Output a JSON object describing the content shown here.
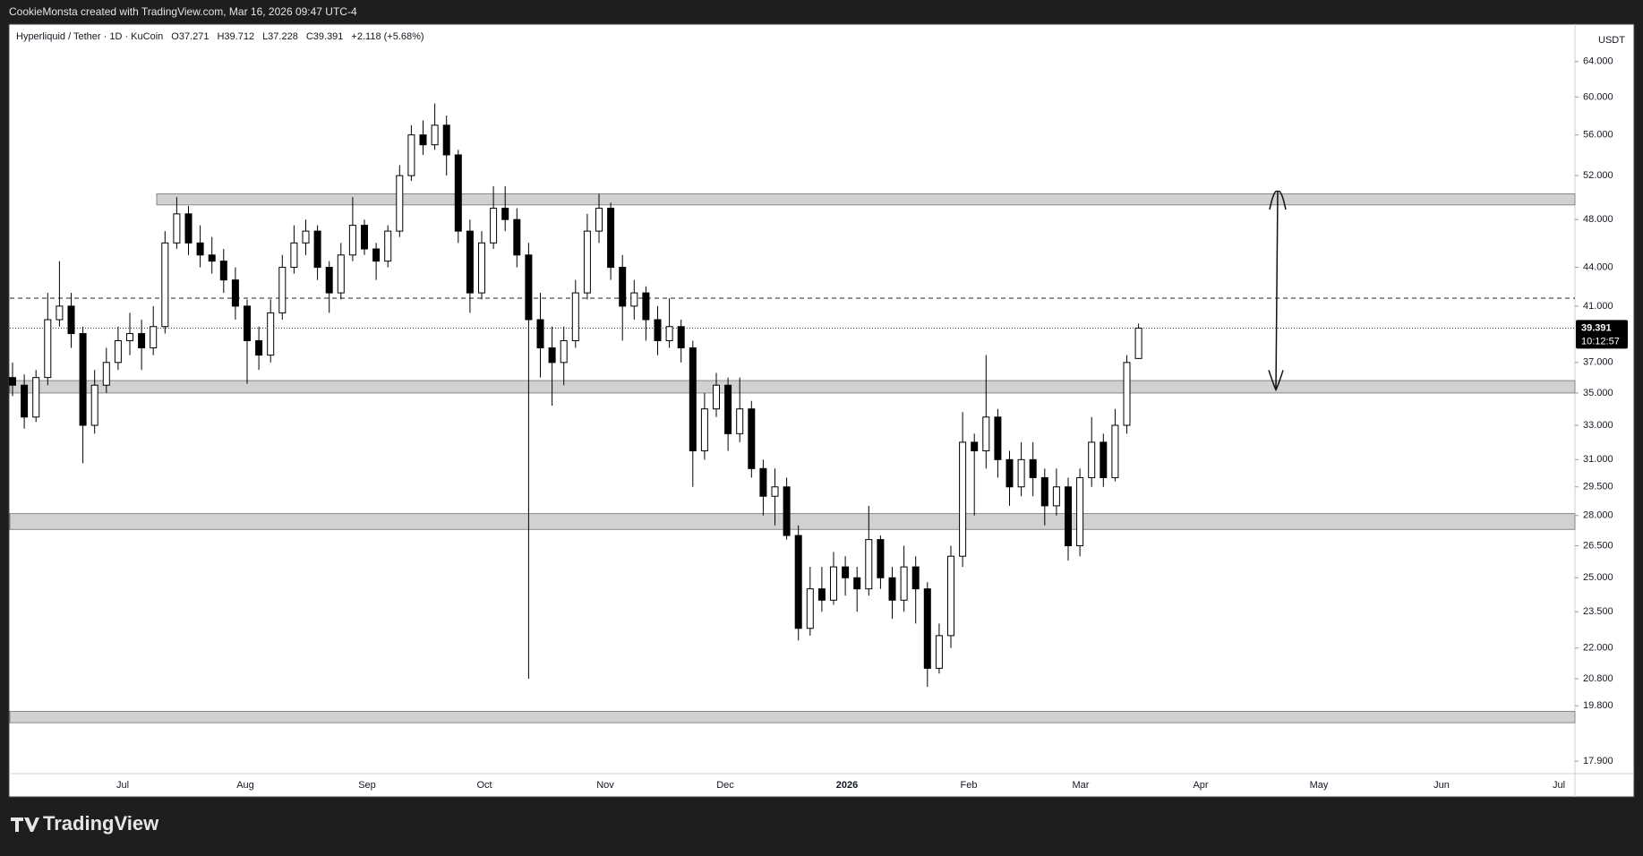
{
  "header": {
    "title": "CookieMonsta created with TradingView.com, Mar 16, 2026 09:47 UTC-4"
  },
  "chart_data": {
    "type": "candlestick",
    "legend": [
      "Hyperliquid / Tether · 1D · KuCoin",
      "O37.271",
      "H39.712",
      "L37.228",
      "C39.391",
      "+2.118 (+5.68%)"
    ],
    "y_axis_label": "USDT",
    "log_scale": true,
    "ylim": [
      17.5,
      68.4
    ],
    "yticks": [
      {
        "value": 64,
        "label": "64.000"
      },
      {
        "value": 60,
        "label": "60.000"
      },
      {
        "value": 56,
        "label": "56.000"
      },
      {
        "value": 52,
        "label": "52.000"
      },
      {
        "value": 48,
        "label": "48.000"
      },
      {
        "value": 44,
        "label": "44.000"
      },
      {
        "value": 41,
        "label": "41.000"
      },
      {
        "value": 37,
        "label": "37.000"
      },
      {
        "value": 35,
        "label": "35.000"
      },
      {
        "value": 33,
        "label": "33.000"
      },
      {
        "value": 31,
        "label": "31.000"
      },
      {
        "value": 29.5,
        "label": "29.500"
      },
      {
        "value": 28,
        "label": "28.000"
      },
      {
        "value": 26.5,
        "label": "26.500"
      },
      {
        "value": 25,
        "label": "25.000"
      },
      {
        "value": 23.5,
        "label": "23.500"
      },
      {
        "value": 22,
        "label": "22.000"
      },
      {
        "value": 20.8,
        "label": "20.800"
      },
      {
        "value": 19.8,
        "label": "19.800"
      },
      {
        "value": 17.9,
        "label": "17.900"
      }
    ],
    "x_labels": [
      "Jul",
      "Aug",
      "Sep",
      "Oct",
      "Nov",
      "Dec",
      "2026",
      "Feb",
      "Mar",
      "Apr",
      "May",
      "Jun",
      "Jul"
    ],
    "up_color": "#ffffff",
    "down_color": "#000000",
    "candles": [
      [
        36,
        37,
        34.8,
        35.5
      ],
      [
        35.5,
        36.2,
        32.8,
        33.5
      ],
      [
        33.5,
        36.5,
        33.2,
        36
      ],
      [
        36,
        42,
        35.5,
        40
      ],
      [
        40,
        44.5,
        39.5,
        41
      ],
      [
        41,
        42,
        38,
        39
      ],
      [
        39,
        39.5,
        30.8,
        33
      ],
      [
        33,
        36.5,
        32.5,
        35.5
      ],
      [
        35.5,
        38,
        35,
        37
      ],
      [
        37,
        39.5,
        36.5,
        38.5
      ],
      [
        38.5,
        40.5,
        37.5,
        39
      ],
      [
        39,
        40,
        36.5,
        38
      ],
      [
        38,
        41,
        37.5,
        39.5
      ],
      [
        39.5,
        47,
        39,
        46
      ],
      [
        46,
        50,
        45.5,
        48.5
      ],
      [
        48.5,
        49.2,
        45,
        46
      ],
      [
        46,
        47.5,
        44,
        45
      ],
      [
        45,
        46.5,
        43.5,
        44.5
      ],
      [
        44.5,
        45.5,
        42,
        43
      ],
      [
        43,
        44,
        40,
        41
      ],
      [
        41,
        41.5,
        35.6,
        38.5
      ],
      [
        38.5,
        39.5,
        36.5,
        37.5
      ],
      [
        37.5,
        41.5,
        37,
        40.5
      ],
      [
        40.5,
        45,
        40,
        44
      ],
      [
        44,
        47.5,
        43.5,
        46
      ],
      [
        46,
        48,
        45,
        47
      ],
      [
        47,
        47.5,
        43,
        44
      ],
      [
        44,
        44.5,
        40.5,
        42
      ],
      [
        42,
        46,
        41.5,
        45
      ],
      [
        45,
        50,
        44.5,
        47.5
      ],
      [
        47.5,
        48,
        45,
        45.5
      ],
      [
        45.5,
        46,
        43,
        44.5
      ],
      [
        44.5,
        47.5,
        44,
        47
      ],
      [
        47,
        53,
        46.5,
        52
      ],
      [
        52,
        57,
        51.5,
        56
      ],
      [
        56,
        57.5,
        54,
        55
      ],
      [
        55,
        59.3,
        54.5,
        57
      ],
      [
        57,
        58,
        52,
        54
      ],
      [
        54,
        54.5,
        46,
        47
      ],
      [
        47,
        48,
        40.5,
        42
      ],
      [
        42,
        47,
        41.5,
        46
      ],
      [
        46,
        51,
        45.5,
        49
      ],
      [
        49,
        51,
        47,
        48
      ],
      [
        48,
        49,
        44,
        45
      ],
      [
        45,
        46,
        20.8,
        40
      ],
      [
        40,
        42,
        36,
        38
      ],
      [
        38,
        39.5,
        34.2,
        37
      ],
      [
        37,
        39.5,
        35.5,
        38.5
      ],
      [
        38.5,
        43,
        38,
        42
      ],
      [
        42,
        48.5,
        41.5,
        47
      ],
      [
        47,
        50.3,
        46,
        49
      ],
      [
        49,
        49.5,
        43,
        44
      ],
      [
        44,
        45,
        38.5,
        41
      ],
      [
        41,
        43,
        40,
        42
      ],
      [
        42,
        42.5,
        38.5,
        40
      ],
      [
        40,
        41,
        37.5,
        38.5
      ],
      [
        38.5,
        41.6,
        38,
        39.5
      ],
      [
        39.5,
        40,
        37,
        38
      ],
      [
        38,
        38.5,
        29.5,
        31.5
      ],
      [
        31.5,
        35,
        31,
        34
      ],
      [
        34,
        36.3,
        33.5,
        35.5
      ],
      [
        35.5,
        36,
        31.5,
        32.5
      ],
      [
        32.5,
        36,
        32,
        34
      ],
      [
        34,
        34.5,
        30,
        30.5
      ],
      [
        30.5,
        31,
        28,
        29
      ],
      [
        29,
        30.5,
        27.5,
        29.5
      ],
      [
        29.5,
        30,
        26.8,
        27
      ],
      [
        27,
        27.5,
        22.3,
        22.8
      ],
      [
        22.8,
        25.5,
        22.5,
        24.5
      ],
      [
        24.5,
        25.5,
        23.5,
        24
      ],
      [
        24,
        26.2,
        23.8,
        25.5
      ],
      [
        25.5,
        26,
        24.2,
        25
      ],
      [
        25,
        25.5,
        23.5,
        24.5
      ],
      [
        24.5,
        28.5,
        24.2,
        26.8
      ],
      [
        26.8,
        27,
        24.5,
        25
      ],
      [
        25,
        25.5,
        23.2,
        24
      ],
      [
        24,
        26.5,
        23.5,
        25.5
      ],
      [
        25.5,
        26,
        23,
        24.5
      ],
      [
        24.5,
        24.8,
        20.5,
        21.2
      ],
      [
        21.2,
        23,
        21,
        22.5
      ],
      [
        22.5,
        26.5,
        22,
        26
      ],
      [
        26,
        33.8,
        25.5,
        32
      ],
      [
        32,
        32.5,
        28,
        31.5
      ],
      [
        31.5,
        37.5,
        30.5,
        33.5
      ],
      [
        33.5,
        34,
        30,
        31
      ],
      [
        31,
        31.5,
        28.5,
        29.5
      ],
      [
        29.5,
        32,
        29,
        31
      ],
      [
        31,
        32,
        29,
        30
      ],
      [
        30,
        30.5,
        27.5,
        28.5
      ],
      [
        28.5,
        30.5,
        28,
        29.5
      ],
      [
        29.5,
        30,
        25.8,
        26.5
      ],
      [
        26.5,
        30.5,
        26,
        30
      ],
      [
        30,
        33.5,
        29.5,
        32
      ],
      [
        32,
        32.5,
        29.5,
        30
      ],
      [
        30,
        34,
        29.8,
        33
      ],
      [
        33,
        37.5,
        32.5,
        37
      ],
      [
        37.271,
        39.712,
        37.228,
        39.391
      ]
    ],
    "last_price": 39.391,
    "countdown": "10:12:57",
    "zones": [
      [
        49.3,
        50.3
      ],
      [
        35.0,
        35.8
      ],
      [
        27.3,
        28.1
      ],
      [
        19.2,
        19.6
      ]
    ],
    "zone_color": "#d1d1d1",
    "level": 41.6,
    "arrow": [
      35.2,
      50.5
    ]
  },
  "footer": {
    "brand": "TradingView"
  }
}
